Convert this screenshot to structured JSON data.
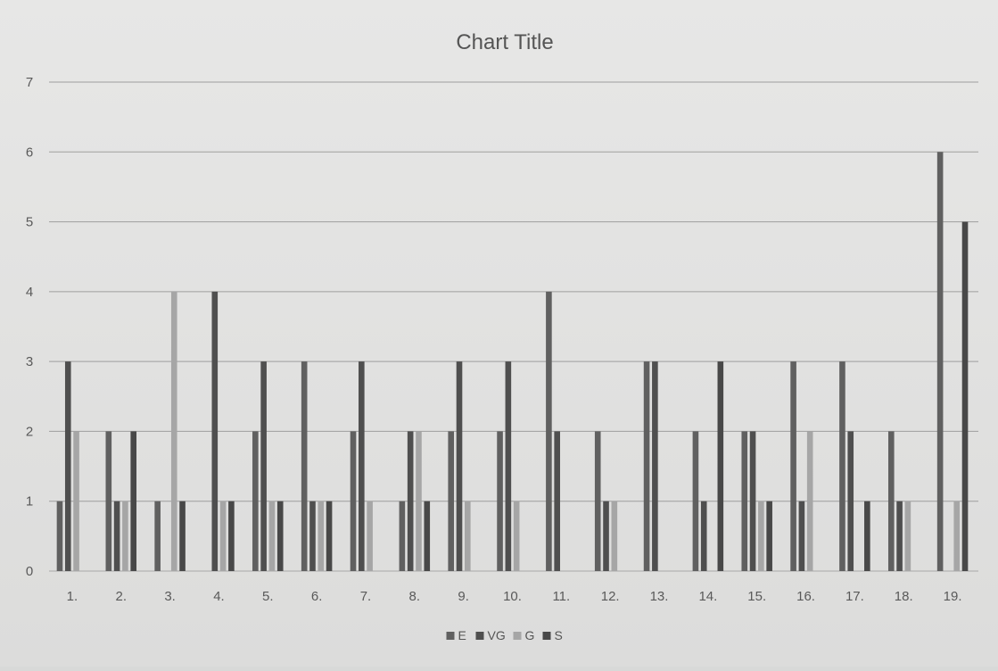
{
  "chart_data": {
    "type": "bar",
    "title": "Chart Title",
    "xlabel": "",
    "ylabel": "",
    "ylim": [
      0,
      7
    ],
    "yticks": [
      0,
      1,
      2,
      3,
      4,
      5,
      6,
      7
    ],
    "grid": true,
    "legend_position": "bottom",
    "categories": [
      "1.",
      "2.",
      "3.",
      "4.",
      "5.",
      "6.",
      "7.",
      "8.",
      "9.",
      "10.",
      "11.",
      "12.",
      "13.",
      "14.",
      "15.",
      "16.",
      "17.",
      "18.",
      "19."
    ],
    "series": [
      {
        "name": "E",
        "color": "#606060",
        "values": [
          1,
          2,
          1,
          0,
          2,
          3,
          2,
          1,
          2,
          2,
          4,
          2,
          3,
          2,
          2,
          3,
          3,
          2,
          6
        ]
      },
      {
        "name": "VG",
        "color": "#4f4f4f",
        "values": [
          3,
          1,
          0,
          4,
          3,
          1,
          3,
          2,
          3,
          3,
          2,
          1,
          3,
          1,
          2,
          1,
          2,
          1,
          0
        ]
      },
      {
        "name": "G",
        "color": "#a6a6a6",
        "values": [
          2,
          1,
          4,
          1,
          1,
          1,
          1,
          2,
          1,
          1,
          0,
          1,
          0,
          0,
          1,
          2,
          0,
          1,
          1
        ]
      },
      {
        "name": "S",
        "color": "#484848",
        "values": [
          0,
          2,
          1,
          1,
          1,
          1,
          0,
          1,
          0,
          0,
          0,
          0,
          0,
          3,
          1,
          0,
          1,
          0,
          5
        ]
      }
    ]
  },
  "colors": {
    "gridline": "#9e9e9e",
    "axis_line": "#a8a8a8"
  }
}
